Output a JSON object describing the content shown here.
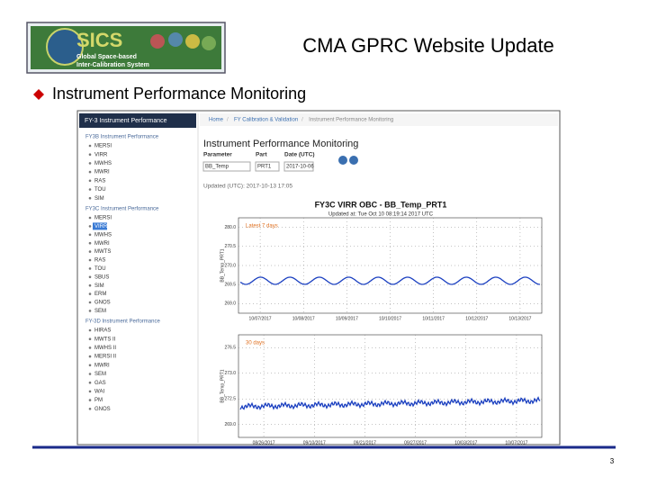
{
  "logo": {
    "name": "SICS",
    "line1": "Global Space-based",
    "line2": "Inter-Calibration System"
  },
  "header": {
    "title": "CMA GPRC Website Update"
  },
  "bullet": "Instrument Performance Monitoring",
  "screenshot": {
    "sidebar": {
      "title": "FY-3 Instrument Performance",
      "groups": [
        {
          "title": "FY3B Instrument Performance",
          "items": [
            "MERSI",
            "VIRR",
            "MWHS",
            "MWRI",
            "RAS",
            "TOU",
            "SIM"
          ]
        },
        {
          "title": "FY3C Instrument Performance",
          "items": [
            "MERSI",
            "VIRR",
            "MWHS",
            "MWRI",
            "MWTS",
            "RAS",
            "TOU",
            "SBUS",
            "SIM",
            "ERM",
            "GNOS",
            "SEM"
          ]
        },
        {
          "title": "FY-3D Instrument Performance",
          "items": [
            "HIRAS",
            "MWTS II",
            "MWHS II",
            "MERSI II",
            "MWRI",
            "SEM",
            "GAS",
            "WAI",
            "PM",
            "GNOS"
          ]
        }
      ]
    },
    "breadcrumb": [
      "Home",
      "FY Calibration & Validation",
      "Instrument Performance Monitoring"
    ],
    "heading": "Instrument Performance Monitoring",
    "form": {
      "labels": [
        "Parameter",
        "Part",
        "Date (UTC)"
      ],
      "values": [
        "BB_Temp",
        "PRT1",
        "2017-10-06"
      ]
    },
    "updated": "Updated (UTC): 2017-10-13 17:05",
    "plot": {
      "title": "FY3C VIRR OBC - BB_Temp_PRT1",
      "subtitle": "Updated at: Tue Oct 10 08:19:14 2017 UTC",
      "ylabel": "BB_Temp_PRT1",
      "panels": [
        {
          "label": "Latest 7 days",
          "yticks": [
            "280.0",
            "270.5",
            "270.0",
            "269.5",
            "269.0"
          ],
          "xticks": [
            "10/07/2017",
            "10/08/2017",
            "10/09/2017",
            "10/10/2017",
            "10/11/2017",
            "10/12/2017",
            "10/13/2017"
          ]
        },
        {
          "label": "30 days",
          "yticks": [
            "276.5",
            "273.0",
            "272.5",
            "269.0"
          ],
          "xticks": [
            "08/26/2017",
            "09/10/2017",
            "09/21/2017",
            "09/27/2017",
            "10/03/2017",
            "10/07/2017"
          ]
        }
      ]
    }
  },
  "page_number": "3"
}
